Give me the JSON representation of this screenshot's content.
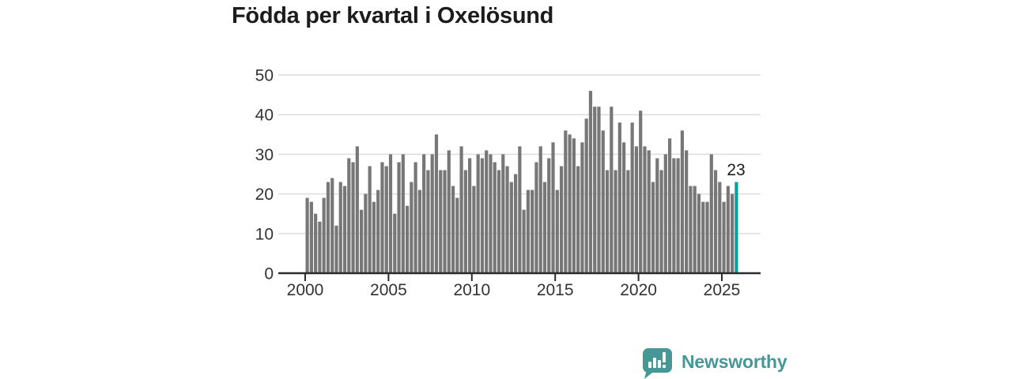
{
  "title": "Födda per kvartal i Oxelösund",
  "colors": {
    "bar": "#777777",
    "highlight": "#00a598",
    "grid": "#dcdcdc",
    "axis": "#2b2b2b",
    "tick_text": "#333333",
    "title_text": "#1c1c1c",
    "brand": "#459896"
  },
  "branding": {
    "name": "Newsworthy",
    "icon": "bar-chart-speech-bubble"
  },
  "chart_data": {
    "type": "bar",
    "title": "Födda per kvartal i Oxelösund",
    "xlabel": "",
    "ylabel": "",
    "frequency": "quarterly",
    "start": "2000-Q1",
    "end": "2025-Q4",
    "x_tick_years": [
      2000,
      2005,
      2010,
      2015,
      2020,
      2025
    ],
    "x_tick_labels": [
      "2000",
      "2005",
      "2010",
      "2015",
      "2020",
      "2025"
    ],
    "y_ticks": [
      0,
      10,
      20,
      30,
      40,
      50
    ],
    "y_tick_labels": [
      "0",
      "10",
      "20",
      "30",
      "40",
      "50"
    ],
    "ylim": [
      0,
      50
    ],
    "grid": "horizontal",
    "legend": "none",
    "highlight_last_bar": true,
    "last_value_label": "23",
    "series": [
      {
        "name": "Födda per kvartal",
        "values": [
          19,
          18,
          15,
          13,
          19,
          23,
          24,
          12,
          23,
          22,
          29,
          28,
          32,
          16,
          20,
          27,
          18,
          21,
          28,
          27,
          30,
          15,
          28,
          30,
          17,
          23,
          28,
          21,
          30,
          26,
          30,
          35,
          26,
          26,
          31,
          22,
          19,
          32,
          26,
          29,
          22,
          30,
          29,
          31,
          30,
          28,
          26,
          30,
          27,
          23,
          25,
          32,
          16,
          21,
          21,
          28,
          32,
          23,
          29,
          33,
          21,
          27,
          36,
          35,
          34,
          27,
          33,
          39,
          46,
          42,
          42,
          36,
          26,
          42,
          26,
          38,
          33,
          26,
          38,
          32,
          41,
          32,
          31,
          23,
          29,
          26,
          30,
          34,
          29,
          29,
          36,
          31,
          22,
          22,
          20,
          18,
          18,
          30,
          26,
          23,
          18,
          22,
          20,
          23
        ]
      }
    ]
  }
}
